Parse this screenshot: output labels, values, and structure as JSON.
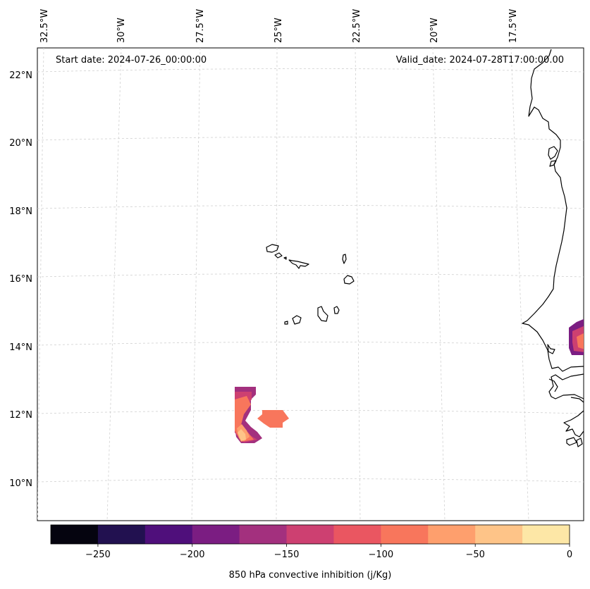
{
  "annotations": {
    "start_date": "Start date: 2024-07-26_00:00:00",
    "valid_date": "Valid_date: 2024-07-28T17:00:00.00"
  },
  "longitude_labels": [
    "32.5°W",
    "30°W",
    "27.5°W",
    "25°W",
    "22.5°W",
    "20°W",
    "17.5°W"
  ],
  "latitude_labels": [
    "22°N",
    "20°N",
    "18°N",
    "16°N",
    "14°N",
    "12°N",
    "10°N"
  ],
  "colorbar": {
    "title": "850 hPa convective inhibition (j/Kg)",
    "tick_labels": [
      "−250",
      "−200",
      "−150",
      "−100",
      "−50",
      "0"
    ],
    "bin_colors": [
      "#05040f",
      "#221150",
      "#4f0f7b",
      "#7b1d82",
      "#a3307e",
      "#cd4071",
      "#ea5661",
      "#f8765c",
      "#fe9f6d",
      "#fec488",
      "#fde7a6"
    ]
  },
  "chart_data": {
    "type": "map",
    "variable": "850 hPa convective inhibition",
    "units": "j/Kg",
    "colorbar_range": [
      -275,
      0
    ],
    "colorbar_ticks": [
      -250,
      -200,
      -150,
      -100,
      -50,
      0
    ],
    "levels": [
      -275,
      -250,
      -225,
      -200,
      -175,
      -150,
      -125,
      -100,
      -75,
      -50,
      -25,
      0
    ],
    "lon_range": [
      -33,
      -15.5
    ],
    "lat_range": [
      9,
      22.8
    ],
    "features": [
      {
        "name": "cin-region-southwest",
        "approx_lat": 12,
        "approx_lon": -26.2,
        "value_range": [
          -175,
          -25
        ]
      },
      {
        "name": "cin-region-south",
        "approx_lat": 11.9,
        "approx_lon": -25.3,
        "value_range": [
          -100,
          -75
        ]
      },
      {
        "name": "cin-region-east",
        "approx_lat": 14.2,
        "approx_lon": -15.6,
        "value_range": [
          -175,
          -75
        ]
      }
    ]
  }
}
